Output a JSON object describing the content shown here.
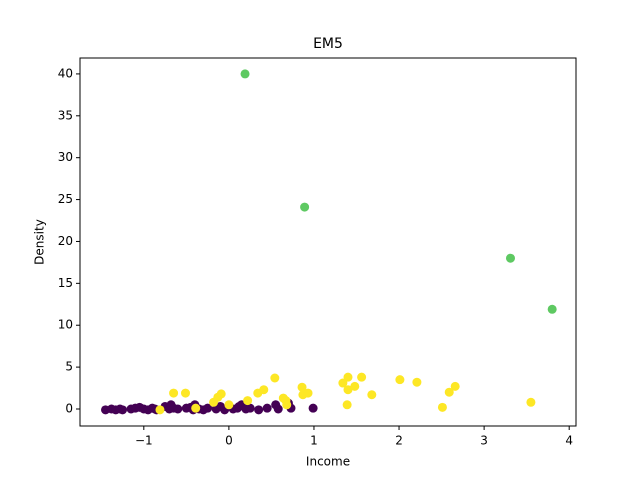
{
  "chart_data": {
    "type": "scatter",
    "title": "EM5",
    "x_label": "Income",
    "y_label": "Density",
    "xlim": [
      -1.75,
      4.08
    ],
    "ylim": [
      -2.03,
      41.9
    ],
    "xticks": [
      {
        "value": -1,
        "label": "−1"
      },
      0,
      1,
      2,
      3,
      4
    ],
    "yticks": [
      0,
      5,
      10,
      15,
      20,
      25,
      30,
      35,
      40
    ],
    "grid": false,
    "series": [
      {
        "color": "#440154",
        "x": [
          -1.45,
          -1.38,
          -1.33,
          -1.28,
          -1.25,
          -1.15,
          -1.1,
          -1.05,
          -1.0,
          -0.95,
          -0.9,
          -0.87,
          -0.85,
          -0.75,
          -0.7,
          -0.68,
          -0.65,
          -0.6,
          -0.5,
          -0.45,
          -0.42,
          -0.4,
          -0.35,
          -0.3,
          -0.25,
          -0.15,
          -0.1,
          -0.05,
          0.05,
          0.1,
          0.12,
          0.15,
          0.2,
          0.25,
          0.35,
          0.45,
          0.55,
          0.58,
          0.7,
          0.73,
          0.99
        ],
        "values": [
          -0.1,
          0.0,
          -0.1,
          0.0,
          -0.1,
          0.0,
          0.1,
          0.2,
          0.0,
          -0.1,
          0.1,
          0.0,
          -0.1,
          0.3,
          0.0,
          0.5,
          0.1,
          0.0,
          0.1,
          0.2,
          -0.1,
          0.5,
          0.0,
          -0.1,
          0.1,
          0.0,
          0.3,
          -0.1,
          0.0,
          0.1,
          0.3,
          0.5,
          0.0,
          0.1,
          -0.1,
          0.1,
          0.5,
          0.0,
          0.7,
          0.1,
          0.1
        ]
      },
      {
        "color": "#fde725",
        "x": [
          -0.65,
          -0.51,
          -0.13,
          -0.09,
          -0.18,
          0.0,
          0.22,
          0.34,
          0.41,
          0.54,
          0.64,
          0.67,
          0.68,
          0.86,
          0.87,
          0.93,
          1.34,
          1.4,
          1.4,
          1.48,
          1.56,
          1.39,
          1.68,
          2.01,
          2.21,
          2.51,
          2.59,
          2.66,
          3.55,
          -0.81,
          -0.39
        ],
        "values": [
          1.9,
          1.9,
          1.4,
          1.8,
          0.8,
          0.5,
          1.0,
          1.9,
          2.3,
          3.7,
          1.3,
          1.0,
          0.5,
          2.6,
          1.7,
          1.9,
          3.1,
          3.8,
          2.3,
          2.7,
          3.8,
          0.5,
          1.7,
          3.5,
          3.2,
          0.2,
          2.0,
          2.7,
          0.8,
          -0.1,
          0.1
        ]
      },
      {
        "color": "#5ec962",
        "x": [
          0.19,
          0.89,
          3.31,
          3.8
        ],
        "values": [
          40,
          24.1,
          18,
          11.9
        ]
      }
    ]
  }
}
